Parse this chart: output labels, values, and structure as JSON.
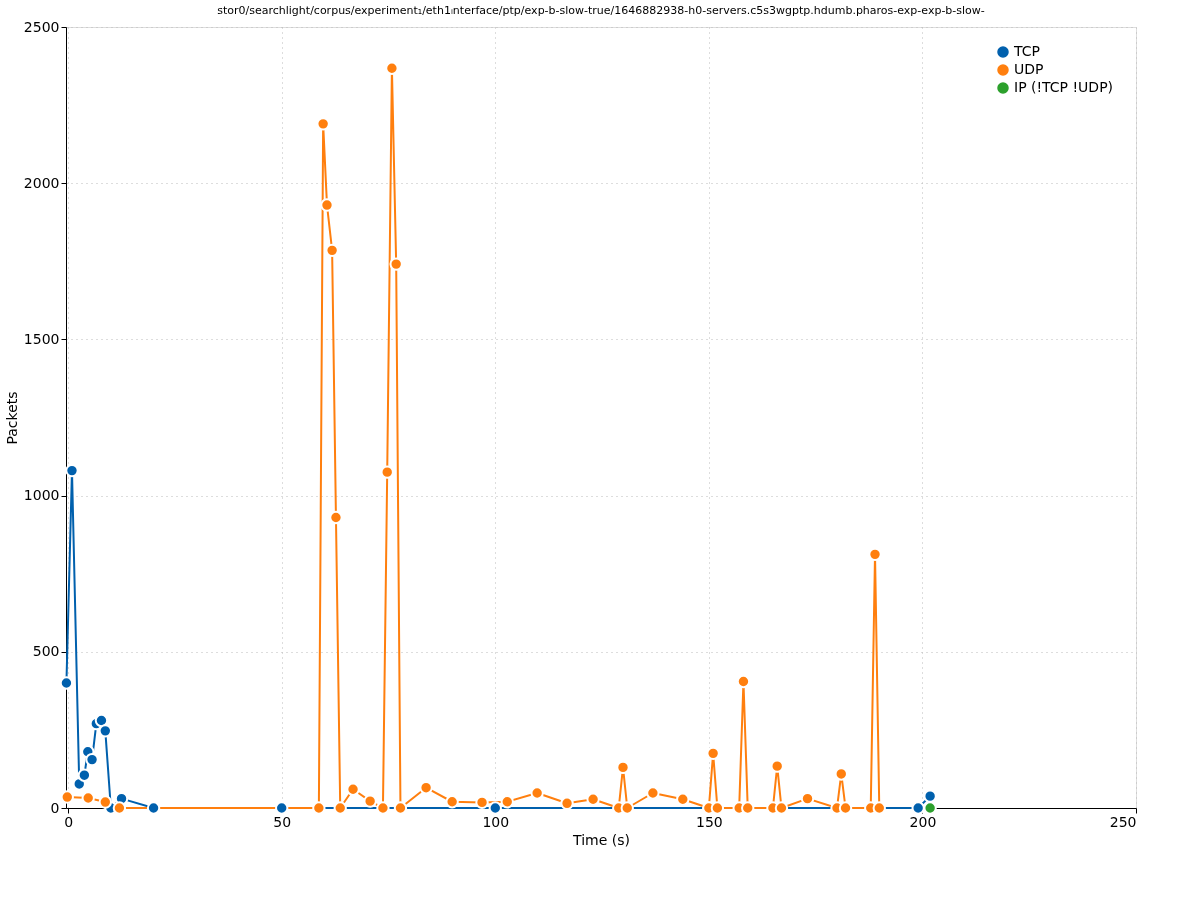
{
  "chart_data": {
    "type": "line",
    "title": "stor0/searchlight/corpus/experiment₁/eth1ᵢnterface/ptp/exp-b-slow-true/1646882938-h0-servers.c5s3wgptp.hdumb.pharos-exp-exp-b-slow-",
    "xlabel": "Time (s)",
    "ylabel": "Packets",
    "xlim": [
      -0.5,
      250
    ],
    "xticks": [
      0,
      50,
      100,
      150,
      200,
      250
    ],
    "ylim": [
      0,
      2500
    ],
    "yticks": [
      0,
      500,
      1000,
      1500,
      2000,
      2500
    ],
    "grid": true,
    "legend": "top right",
    "marker": "circle",
    "line_style": "solid",
    "series": [
      {
        "name": "TCP",
        "color": "#0060ad",
        "x": [
          -0.4,
          0.9,
          2.6,
          3.8,
          4.6,
          5.6,
          6.6,
          7.8,
          8.7,
          10,
          12.5,
          20,
          50,
          100,
          150,
          199,
          201.8
        ],
        "values": [
          400,
          1080,
          77,
          105,
          180,
          155,
          270,
          280,
          247,
          0,
          30,
          0,
          0,
          0,
          0,
          0,
          38
        ]
      },
      {
        "name": "UDP",
        "color": "#ff7f0e",
        "x": [
          -0.2,
          4.7,
          8.7,
          12,
          58.7,
          59.7,
          60.6,
          61.8,
          62.7,
          63.7,
          66.7,
          70.7,
          73.7,
          74.7,
          75.8,
          76.8,
          77.8,
          83.8,
          89.9,
          96.9,
          102.8,
          109.8,
          116.8,
          122.9,
          128.9,
          129.9,
          130.9,
          136.9,
          143.9,
          150,
          151,
          152,
          157.1,
          158.1,
          159.1,
          165,
          166,
          167,
          173.1,
          180,
          181,
          182,
          187.9,
          188.9,
          189.9
        ],
        "values": [
          35,
          32,
          19,
          0,
          0,
          2190,
          1930,
          1785,
          930,
          0,
          60,
          22,
          0,
          1075,
          2368,
          1741,
          0,
          65,
          20,
          18,
          20,
          48,
          15,
          28,
          0,
          130,
          0,
          48,
          28,
          0,
          175,
          0,
          0,
          405,
          0,
          0,
          134,
          0,
          30,
          0,
          109,
          0,
          0,
          812,
          0
        ]
      },
      {
        "name": "IP (!TCP  !UDP)",
        "color": "#2ca02c",
        "x": [
          201.8
        ],
        "values": [
          0
        ]
      }
    ]
  }
}
